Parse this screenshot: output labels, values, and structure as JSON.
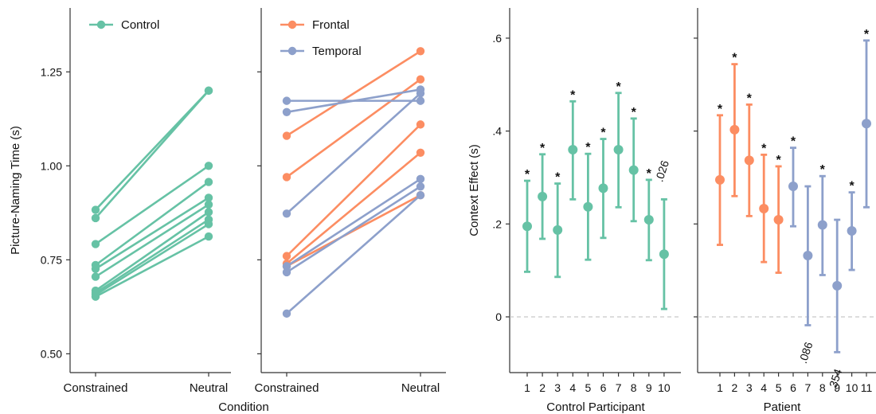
{
  "colors": {
    "control": "#66c2a5",
    "frontal": "#fc8d62",
    "temporal": "#8da0cb",
    "axis": "#333333",
    "zero_line": "#bbbbbb"
  },
  "chart_data": [
    {
      "id": "control_slope",
      "type": "line",
      "ylabel": "Picture-Naming Time (s)",
      "ylim": [
        0.45,
        1.42
      ],
      "yticks": [
        0.5,
        0.75,
        1.0,
        1.25
      ],
      "ytick_labels": [
        "0.50",
        "0.75",
        "1.00",
        "1.25"
      ],
      "categories": [
        "Constrained",
        "Neutral"
      ],
      "legend": [
        {
          "label": "Control",
          "color": "#66c2a5"
        }
      ],
      "legend_position": "top-left",
      "series": [
        {
          "group": "control",
          "values": [
            0.883,
            1.2
          ]
        },
        {
          "group": "control",
          "values": [
            0.861,
            1.2
          ]
        },
        {
          "group": "control",
          "values": [
            0.792,
            1.0
          ]
        },
        {
          "group": "control",
          "values": [
            0.736,
            0.957
          ]
        },
        {
          "group": "control",
          "values": [
            0.726,
            0.915
          ]
        },
        {
          "group": "control",
          "values": [
            0.705,
            0.897
          ]
        },
        {
          "group": "control",
          "values": [
            0.668,
            0.877
          ]
        },
        {
          "group": "control",
          "values": [
            0.662,
            0.857
          ]
        },
        {
          "group": "control",
          "values": [
            0.657,
            0.845
          ]
        },
        {
          "group": "control",
          "values": [
            0.652,
            0.812
          ]
        }
      ]
    },
    {
      "id": "patient_slope",
      "type": "line",
      "ylim": [
        0.45,
        1.42
      ],
      "categories": [
        "Constrained",
        "Neutral"
      ],
      "legend": [
        {
          "label": "Frontal",
          "color": "#fc8d62"
        },
        {
          "label": "Temporal",
          "color": "#8da0cb"
        }
      ],
      "legend_position": "top-left",
      "series": [
        {
          "group": "frontal",
          "values": [
            1.08,
            1.305
          ]
        },
        {
          "group": "frontal",
          "values": [
            0.97,
            1.23
          ]
        },
        {
          "group": "frontal",
          "values": [
            0.76,
            1.11
          ]
        },
        {
          "group": "frontal",
          "values": [
            0.74,
            1.035
          ]
        },
        {
          "group": "frontal",
          "values": [
            0.733,
            0.922
          ]
        },
        {
          "group": "temporal",
          "values": [
            1.173,
            1.173
          ]
        },
        {
          "group": "temporal",
          "values": [
            1.143,
            1.203
          ]
        },
        {
          "group": "temporal",
          "values": [
            0.873,
            1.193
          ]
        },
        {
          "group": "temporal",
          "values": [
            0.733,
            0.965
          ]
        },
        {
          "group": "temporal",
          "values": [
            0.717,
            0.945
          ]
        },
        {
          "group": "temporal",
          "values": [
            0.607,
            0.922
          ]
        }
      ]
    },
    {
      "id": "control_effects",
      "type": "scatter",
      "ylabel": "Context Effect (s)",
      "xlabel": "Control Participant",
      "ylim": [
        -0.12,
        0.665
      ],
      "yticks": [
        0,
        0.2,
        0.4,
        0.6
      ],
      "ytick_labels": [
        "0",
        ".2",
        ".4",
        ".6"
      ],
      "points": [
        {
          "x": "1",
          "group": "control",
          "mean": 0.195,
          "lo": 0.097,
          "hi": 0.293,
          "sig": "*"
        },
        {
          "x": "2",
          "group": "control",
          "mean": 0.259,
          "lo": 0.168,
          "hi": 0.35,
          "sig": "*"
        },
        {
          "x": "3",
          "group": "control",
          "mean": 0.187,
          "lo": 0.086,
          "hi": 0.287,
          "sig": "*"
        },
        {
          "x": "4",
          "group": "control",
          "mean": 0.36,
          "lo": 0.253,
          "hi": 0.464,
          "sig": "*"
        },
        {
          "x": "5",
          "group": "control",
          "mean": 0.237,
          "lo": 0.123,
          "hi": 0.351,
          "sig": "*"
        },
        {
          "x": "6",
          "group": "control",
          "mean": 0.277,
          "lo": 0.17,
          "hi": 0.383,
          "sig": "*"
        },
        {
          "x": "7",
          "group": "control",
          "mean": 0.36,
          "lo": 0.236,
          "hi": 0.482,
          "sig": "*"
        },
        {
          "x": "8",
          "group": "control",
          "mean": 0.316,
          "lo": 0.206,
          "hi": 0.427,
          "sig": "*"
        },
        {
          "x": "9",
          "group": "control",
          "mean": 0.209,
          "lo": 0.122,
          "hi": 0.295,
          "sig": "*"
        },
        {
          "x": "10",
          "group": "control",
          "mean": 0.135,
          "lo": 0.017,
          "hi": 0.253,
          "pval": ".026"
        }
      ]
    },
    {
      "id": "patient_effects",
      "type": "scatter",
      "xlabel": "Patient",
      "ylim": [
        -0.12,
        0.665
      ],
      "yticks": [
        0,
        0.2,
        0.4,
        0.6
      ],
      "points": [
        {
          "x": "1",
          "group": "frontal",
          "mean": 0.295,
          "lo": 0.155,
          "hi": 0.434,
          "sig": "*"
        },
        {
          "x": "2",
          "group": "frontal",
          "mean": 0.403,
          "lo": 0.26,
          "hi": 0.544,
          "sig": "*"
        },
        {
          "x": "3",
          "group": "frontal",
          "mean": 0.337,
          "lo": 0.217,
          "hi": 0.457,
          "sig": "*"
        },
        {
          "x": "4",
          "group": "frontal",
          "mean": 0.233,
          "lo": 0.118,
          "hi": 0.349,
          "sig": "*"
        },
        {
          "x": "5",
          "group": "frontal",
          "mean": 0.209,
          "lo": 0.095,
          "hi": 0.324,
          "sig": "*"
        },
        {
          "x": "6",
          "group": "temporal",
          "mean": 0.281,
          "lo": 0.195,
          "hi": 0.364,
          "sig": "*"
        },
        {
          "x": "7",
          "group": "temporal",
          "mean": 0.132,
          "lo": -0.018,
          "hi": 0.281,
          "pval": ".086"
        },
        {
          "x": "8",
          "group": "temporal",
          "mean": 0.198,
          "lo": 0.09,
          "hi": 0.303,
          "sig": "*"
        },
        {
          "x": "9",
          "group": "temporal",
          "mean": 0.067,
          "lo": -0.076,
          "hi": 0.209,
          "pval": ".354"
        },
        {
          "x": "10",
          "group": "temporal",
          "mean": 0.185,
          "lo": 0.101,
          "hi": 0.268,
          "sig": "*"
        },
        {
          "x": "11",
          "group": "temporal",
          "mean": 0.416,
          "lo": 0.236,
          "hi": 0.595,
          "sig": "*"
        }
      ]
    }
  ],
  "shared_xlabel": "Condition"
}
